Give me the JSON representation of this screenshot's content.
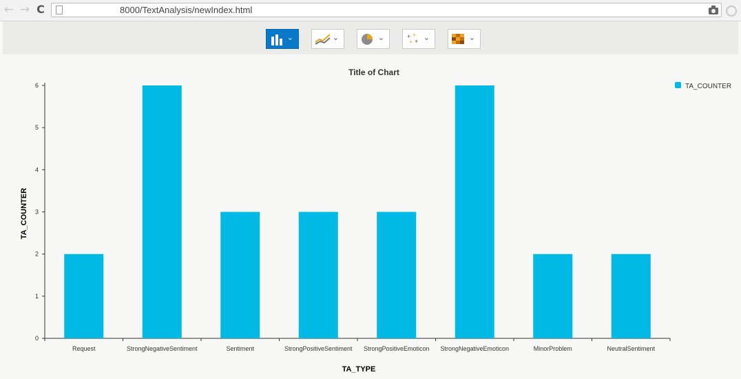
{
  "browser": {
    "url": "8000/TextAnalysis/newIndex.html",
    "back_symbol": "←",
    "forward_symbol": "→",
    "reload_symbol": "C",
    "bookmark_symbol": "☆"
  },
  "toolbar": {
    "buttons": [
      {
        "name": "column-chart",
        "active": true
      },
      {
        "name": "line-chart",
        "active": false
      },
      {
        "name": "pie-chart",
        "active": false
      },
      {
        "name": "scatter-chart",
        "active": false
      },
      {
        "name": "heatmap-chart",
        "active": false
      }
    ],
    "chevron": "⌄"
  },
  "chart_data": {
    "type": "bar",
    "title": "Title of Chart",
    "xlabel": "TA_TYPE",
    "ylabel": "TA_COUNTER",
    "categories": [
      "Request",
      "StrongNegativeSentiment",
      "Sentiment",
      "StrongPositiveSentiment",
      "StrongPositiveEmoticon",
      "StrongNegativeEmoticon",
      "MinorProblem",
      "NeutralSentiment"
    ],
    "series": [
      {
        "name": "TA_COUNTER",
        "values": [
          2,
          6,
          3,
          3,
          3,
          6,
          2,
          2
        ],
        "color": "#00b9e4"
      }
    ],
    "ylim": [
      0,
      6
    ],
    "yticks": [
      0,
      1,
      2,
      3,
      4,
      5,
      6
    ],
    "legend_position": "top-right",
    "grid": false
  }
}
